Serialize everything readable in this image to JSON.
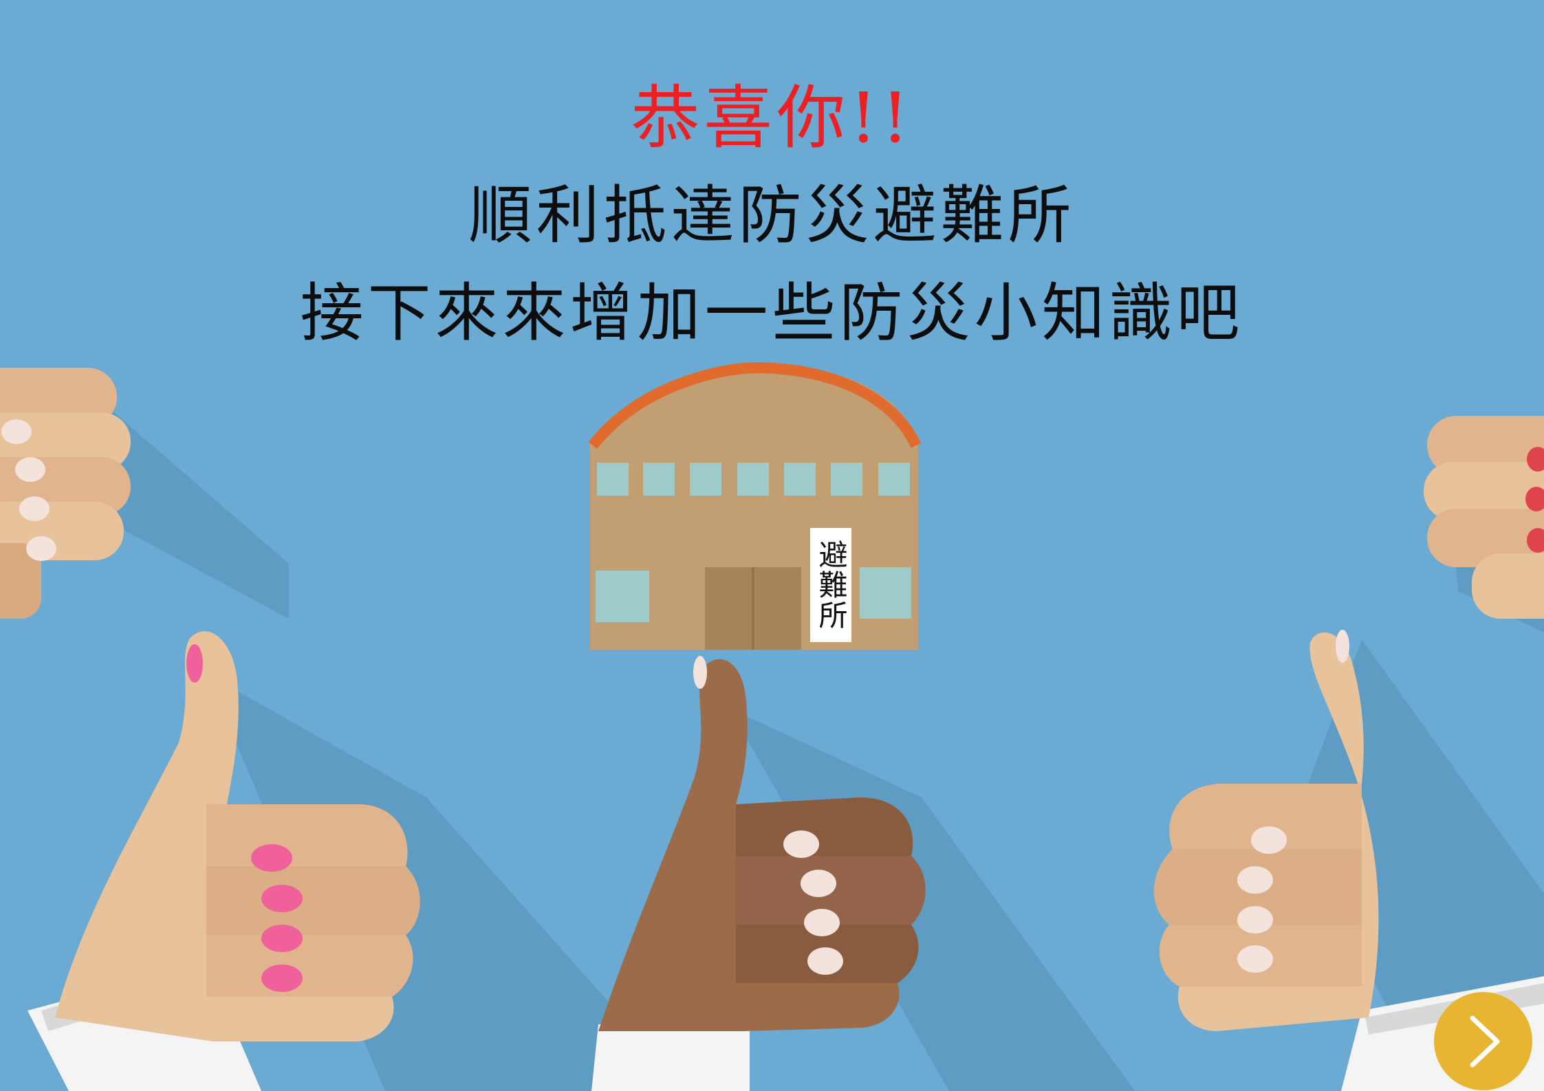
{
  "slide": {
    "title": "恭喜你!!",
    "line1": "順利抵達防災避難所",
    "line2": "接下來來增加一些防災小知識吧"
  },
  "shelter": {
    "sign": "避難所"
  },
  "navigation": {
    "next_icon": "chevron-right-icon"
  },
  "colors": {
    "background": "#6aaad3",
    "title": "#ee1f22",
    "text": "#0d0d0d",
    "next_button": "#e8b532",
    "roof": "#e06b2d",
    "wall": "#c29f72",
    "window": "#9ecbca",
    "door": "#a5845a",
    "nail_pink": "#f0609a",
    "nail_red": "#e0454e"
  }
}
